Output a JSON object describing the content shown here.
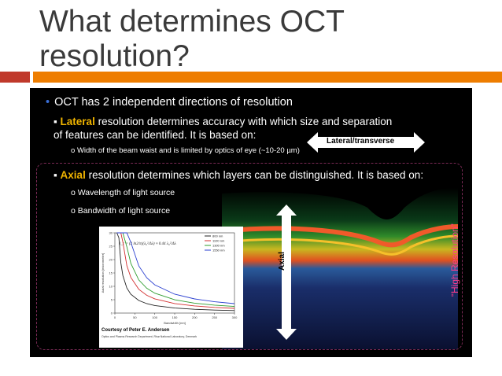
{
  "title": "What determines OCT resolution?",
  "bullets": {
    "main": "OCT has 2 independent directions of resolution",
    "lateral_word": "Lateral",
    "lateral_rest": " resolution determines accuracy with which size and separation of features can be identified. It is based on:",
    "lateral_sub": "Width of the beam waist and is limited by optics of eye (~10-20 µm)",
    "axial_word": "Axial",
    "axial_rest": " resolution determines which layers can be distinguished. It is based on:",
    "axial_sub1": "Wavelength of light source",
    "axial_sub2": "Bandwidth of light source"
  },
  "arrows": {
    "lateral_label": "Lateral/transverse",
    "axial_label": "Axial",
    "high_res_label": "“High Resolution”"
  },
  "figure": {
    "caption": "Courtesy of Peter E. Andersen",
    "affiliation": "Optics and Plasma Research Department, Risø National Laboratory, Denmark"
  },
  "colors": {
    "accent_red": "#c0392b",
    "accent_orange": "#ee7d00",
    "highlight": "#f0b400",
    "high_res": "#ff3c8c"
  },
  "chart_data": {
    "type": "line",
    "title": "",
    "xlabel": "Bandwidth [nm]",
    "ylabel": "Axial resolution [micrometer]",
    "xlim": [
      0,
      300
    ],
    "ylim": [
      0,
      30
    ],
    "x_ticks": [
      0,
      50,
      100,
      150,
      200,
      250,
      300
    ],
    "y_ticks": [
      0,
      5,
      10,
      15,
      20,
      25,
      30
    ],
    "equation": "l_c = (2 ln2/π)(λ₀²/Δλ) ≈ 0.44 λ₀²/Δλ",
    "x": [
      5,
      10,
      15,
      20,
      30,
      40,
      60,
      80,
      100,
      150,
      200,
      250,
      300
    ],
    "series": [
      {
        "name": "800 nm",
        "color": "#222222",
        "center_nm": 800
      },
      {
        "name": "1100 nm",
        "color": "#d32f2f",
        "center_nm": 1100
      },
      {
        "name": "1300 nm",
        "color": "#2e9d2e",
        "center_nm": 1300
      },
      {
        "name": "1550 nm",
        "color": "#2a3fd0",
        "center_nm": 1550
      }
    ]
  }
}
